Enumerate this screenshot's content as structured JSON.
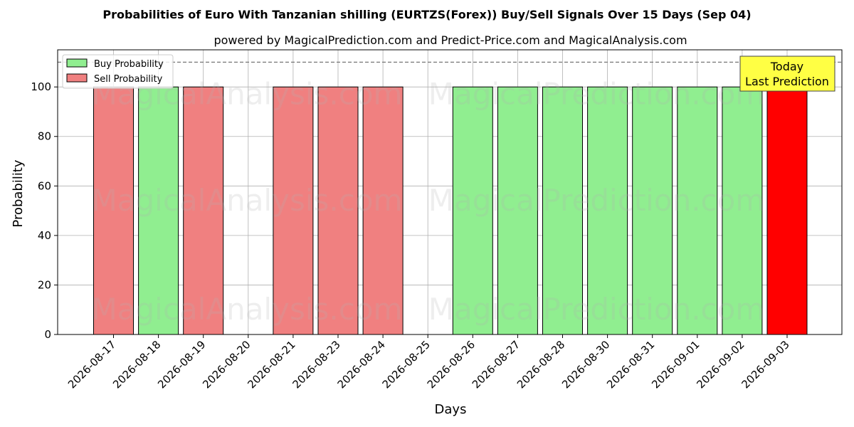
{
  "chart_data": {
    "type": "bar",
    "title": "Probabilities of Euro With Tanzanian shilling (EURTZS(Forex)) Buy/Sell Signals Over 15 Days (Sep 04)",
    "subtitle": "powered by MagicalPrediction.com and Predict-Price.com and MagicalAnalysis.com",
    "xlabel": "Days",
    "ylabel": "Probability",
    "ylim": [
      0,
      115
    ],
    "yticks": [
      0,
      20,
      40,
      60,
      80,
      100
    ],
    "threshold_line": 110,
    "grid": true,
    "legend_position": "top-left",
    "categories": [
      "2026-08-17",
      "2026-08-18",
      "2026-08-19",
      "2026-08-20",
      "2026-08-21",
      "2026-08-23",
      "2026-08-24",
      "2026-08-25",
      "2026-08-26",
      "2026-08-27",
      "2026-08-28",
      "2026-08-30",
      "2026-08-31",
      "2026-09-01",
      "2026-09-02",
      "2026-09-03"
    ],
    "series": [
      {
        "name": "Buy Probability",
        "color": "#90ee90",
        "values": [
          0,
          100,
          0,
          0,
          0,
          0,
          0,
          0,
          100,
          100,
          100,
          100,
          100,
          100,
          100,
          0
        ]
      },
      {
        "name": "Sell Probability",
        "color": "#f08080",
        "values": [
          100,
          0,
          100,
          0,
          100,
          100,
          100,
          0,
          0,
          0,
          0,
          0,
          0,
          0,
          0,
          100
        ]
      }
    ],
    "highlight": {
      "category": "2026-09-03",
      "color": "#ff0000"
    },
    "annotation": {
      "line1": "Today",
      "line2": "Last Prediction",
      "color": "#ffff44"
    },
    "watermarks": [
      "MagicalAnalysis.com",
      "MagicalPrediction.com"
    ]
  }
}
